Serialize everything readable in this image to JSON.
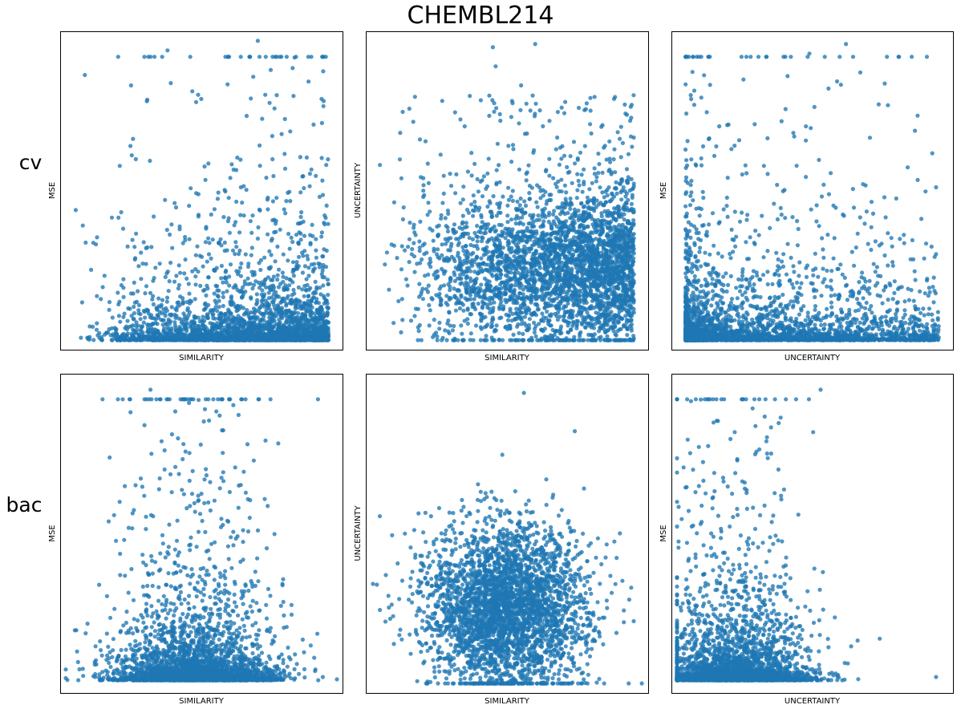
{
  "figure": {
    "title": "CHEMBL214",
    "point_color": "#1f77b4"
  },
  "rows": [
    "cv",
    "bac"
  ],
  "chart_data": [
    {
      "type": "scatter",
      "row": "cv",
      "xlabel": "SIMILARITY",
      "ylabel": "MSE",
      "xlim": [
        0,
        1
      ],
      "ylim": [
        0,
        1
      ],
      "grid": false,
      "ticks": false,
      "generator": {
        "n": 3200,
        "seed": 11,
        "x_shape": "ramp-up",
        "x_range": [
          0.05,
          0.95
        ],
        "y_shape": "floor-heavy",
        "y_floor": 0.03
      },
      "outliers": [
        [
          0.38,
          0.94
        ],
        [
          0.7,
          0.97
        ],
        [
          0.73,
          0.54
        ],
        [
          0.64,
          0.51
        ],
        [
          0.08,
          0.39
        ]
      ]
    },
    {
      "type": "scatter",
      "row": "cv",
      "xlabel": "SIMILARITY",
      "ylabel": "UNCERTAINTY",
      "xlim": [
        0,
        1
      ],
      "ylim": [
        0,
        1
      ],
      "grid": false,
      "ticks": false,
      "generator": {
        "n": 3400,
        "seed": 23,
        "x_shape": "ramp-up",
        "x_range": [
          0.05,
          0.95
        ],
        "y_center": 0.25,
        "y_spread": 0.12,
        "y_tail": 0.55
      },
      "outliers": [
        [
          0.45,
          0.95
        ],
        [
          0.6,
          0.96
        ],
        [
          0.46,
          0.89
        ],
        [
          0.55,
          0.83
        ],
        [
          0.05,
          0.58
        ]
      ]
    },
    {
      "type": "scatter",
      "row": "cv",
      "xlabel": "UNCERTAINTY",
      "ylabel": "MSE",
      "xlim": [
        0,
        1
      ],
      "ylim": [
        0,
        1
      ],
      "grid": false,
      "ticks": false,
      "generator": {
        "n": 3000,
        "seed": 37,
        "x_shape": "skew-low",
        "x_range": [
          0.05,
          0.95
        ],
        "y_shape": "floor-heavy",
        "y_floor": 0.03
      },
      "outliers": [
        [
          0.49,
          0.93
        ],
        [
          0.62,
          0.96
        ],
        [
          0.2,
          0.54
        ],
        [
          0.94,
          0.51
        ],
        [
          0.94,
          0.3
        ]
      ]
    },
    {
      "type": "scatter",
      "row": "bac",
      "xlabel": "SIMILARITY",
      "ylabel": "MSE",
      "xlim": [
        0,
        1
      ],
      "ylim": [
        0,
        1
      ],
      "grid": false,
      "ticks": false,
      "generator": {
        "n": 3300,
        "seed": 51,
        "x_center": 0.48,
        "x_spread": 0.14,
        "y_shape": "floor-heavy",
        "y_floor": 0.04
      },
      "outliers": [
        [
          0.32,
          0.95
        ],
        [
          0.37,
          0.76
        ],
        [
          0.37,
          0.7
        ],
        [
          0.06,
          0.13
        ],
        [
          0.93,
          0.05
        ]
      ]
    },
    {
      "type": "scatter",
      "row": "bac",
      "xlabel": "SIMILARITY",
      "ylabel": "UNCERTAINTY",
      "xlim": [
        0,
        1
      ],
      "ylim": [
        0,
        1
      ],
      "grid": false,
      "ticks": false,
      "generator": {
        "n": 3300,
        "seed": 67,
        "x_center": 0.5,
        "x_spread": 0.14,
        "y_center": 0.26,
        "y_spread": 0.13
      },
      "outliers": [
        [
          0.56,
          0.94
        ],
        [
          0.74,
          0.82
        ],
        [
          0.05,
          0.26
        ],
        [
          0.94,
          0.33
        ],
        [
          0.9,
          0.5
        ]
      ]
    },
    {
      "type": "scatter",
      "row": "bac",
      "xlabel": "UNCERTAINTY",
      "ylabel": "MSE",
      "xlim": [
        0,
        1
      ],
      "ylim": [
        0,
        1
      ],
      "grid": false,
      "ticks": false,
      "generator": {
        "n": 3100,
        "seed": 83,
        "x_center": 0.23,
        "x_spread": 0.13,
        "y_shape": "floor-heavy",
        "y_floor": 0.04
      },
      "outliers": [
        [
          0.53,
          0.95
        ],
        [
          0.34,
          0.75
        ],
        [
          0.38,
          0.7
        ],
        [
          0.94,
          0.05
        ],
        [
          0.74,
          0.17
        ]
      ]
    }
  ]
}
